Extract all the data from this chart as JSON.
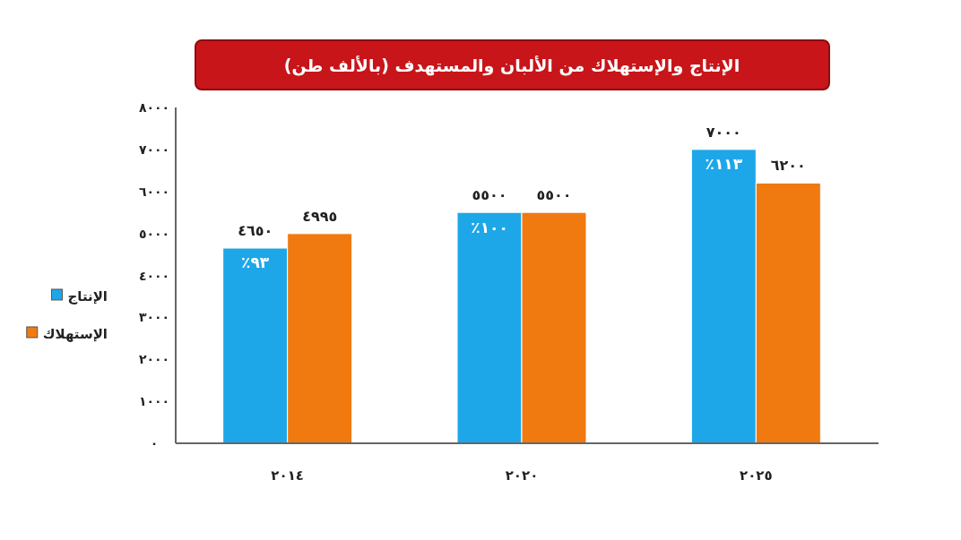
{
  "chart_data": {
    "type": "bar",
    "title": "الإنتاج والإستهلاك من الألبان والمستهدف (بالألف طن)",
    "categories": [
      "٢٠١٤",
      "٢٠٢٠",
      "٢٠٢٥"
    ],
    "series": [
      {
        "name": "الإنتاج",
        "color": "#1ea7e8",
        "values": [
          4650,
          5500,
          7000
        ],
        "value_labels": [
          "٤٦٥٠",
          "٥٥٠٠",
          "٧٠٠٠"
        ]
      },
      {
        "name": "الإستهلاك",
        "color": "#f07a10",
        "values": [
          4995,
          5500,
          6200
        ],
        "value_labels": [
          "٤٩٩٥",
          "٥٥٠٠",
          "٦٢٠٠"
        ]
      }
    ],
    "ylim": [
      0,
      8000
    ],
    "yticks": [
      {
        "value": 0,
        "label": "٠"
      },
      {
        "value": 1000,
        "label": "١٠٠٠"
      },
      {
        "value": 2000,
        "label": "٢٠٠٠"
      },
      {
        "value": 3000,
        "label": "٣٠٠٠"
      },
      {
        "value": 4000,
        "label": "٤٠٠٠"
      },
      {
        "value": 5000,
        "label": "٥٠٠٠"
      },
      {
        "value": 6000,
        "label": "٦٠٠٠"
      },
      {
        "value": 7000,
        "label": "٧٠٠٠"
      },
      {
        "value": 8000,
        "label": "٨٠٠٠"
      }
    ],
    "annotations": [
      {
        "text": "٩٣٪",
        "x": "٢٠١٤",
        "y": 4300
      },
      {
        "text": "١٠٠٪",
        "x": "٢٠٢٠",
        "y": 5150
      },
      {
        "text": "١١٣٪",
        "x": "٢٠٢٥",
        "y": 6650
      }
    ],
    "legend": "left",
    "grid": false
  }
}
